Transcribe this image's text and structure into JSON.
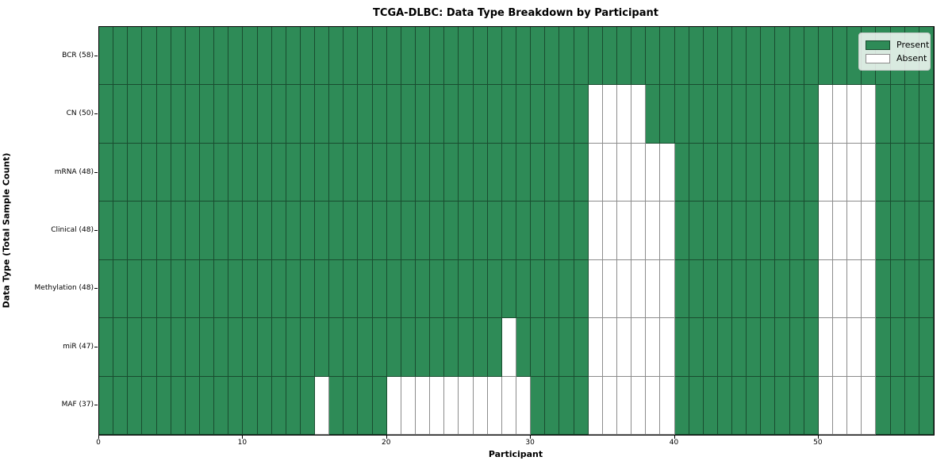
{
  "chart_data": {
    "type": "heatmap",
    "title": "TCGA-DLBC: Data Type Breakdown by Participant",
    "xlabel": "Participant",
    "ylabel": "Data Type (Total Sample Count)",
    "x_range": [
      0,
      58
    ],
    "n_participants": 58,
    "x_ticks": [
      0,
      10,
      20,
      30,
      40,
      50
    ],
    "grid": true,
    "legend_position": "upper right",
    "rows": [
      {
        "label": "BCR (58)",
        "data_type": "BCR",
        "present_count": 58,
        "absent_participants": []
      },
      {
        "label": "CN (50)",
        "data_type": "CN",
        "present_count": 50,
        "absent_participants": [
          34,
          35,
          36,
          37,
          50,
          51,
          52,
          53
        ]
      },
      {
        "label": "mRNA (48)",
        "data_type": "mRNA",
        "present_count": 48,
        "absent_participants": [
          34,
          35,
          36,
          37,
          38,
          39,
          50,
          51,
          52,
          53
        ]
      },
      {
        "label": "Clinical (48)",
        "data_type": "Clinical",
        "present_count": 48,
        "absent_participants": [
          34,
          35,
          36,
          37,
          38,
          39,
          50,
          51,
          52,
          53
        ]
      },
      {
        "label": "Methylation (48)",
        "data_type": "Methylation",
        "present_count": 48,
        "absent_participants": [
          34,
          35,
          36,
          37,
          38,
          39,
          50,
          51,
          52,
          53
        ]
      },
      {
        "label": "miR (47)",
        "data_type": "miR",
        "present_count": 47,
        "absent_participants": [
          28,
          34,
          35,
          36,
          37,
          38,
          39,
          50,
          51,
          52,
          53
        ]
      },
      {
        "label": "MAF (37)",
        "data_type": "MAF",
        "present_count": 37,
        "absent_participants": [
          15,
          20,
          21,
          22,
          23,
          24,
          25,
          26,
          27,
          28,
          29,
          34,
          35,
          36,
          37,
          38,
          39,
          50,
          51,
          52,
          53
        ]
      }
    ],
    "legend": [
      {
        "label": "Present",
        "color": "#2e8b57"
      },
      {
        "label": "Absent",
        "color": "#ffffff"
      }
    ],
    "colors": {
      "present": "#2e8b57",
      "absent": "#ffffff",
      "grid_line": "rgba(0,0,0,0.45)",
      "axis_border": "#000000"
    }
  }
}
